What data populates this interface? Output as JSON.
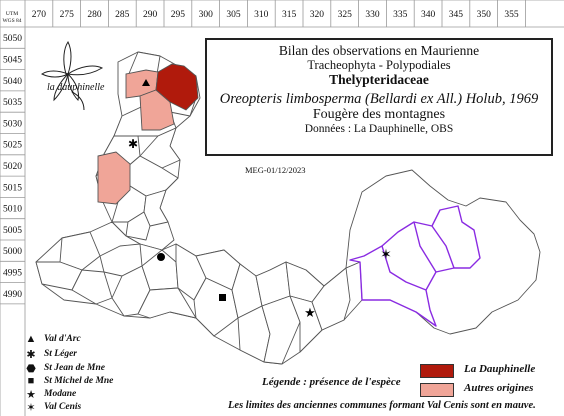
{
  "grid": {
    "utm_label_line1": "UTM",
    "utm_label_line2": "WGS 84",
    "x_ticks": [
      "270",
      "275",
      "280",
      "285",
      "290",
      "295",
      "300",
      "305",
      "310",
      "315",
      "320",
      "325",
      "330",
      "335",
      "340",
      "345",
      "350",
      "355"
    ],
    "y_ticks": [
      "5050",
      "5045",
      "5040",
      "5035",
      "5030",
      "5025",
      "5020",
      "5015",
      "5010",
      "5005",
      "5000",
      "4995",
      "4990"
    ]
  },
  "logo": {
    "text": "la dauphinelle",
    "icon": "flower-icon"
  },
  "title": {
    "line1": "Bilan des observations en Maurienne",
    "line2": "Tracheophyta - Polypodiales",
    "line3": "Thelypteridaceae",
    "line4": "Oreopteris limbosperma (Bellardi ex All.) Holub, 1969",
    "line5": "Fougère des montagnes",
    "line6": "Données : La Dauphinelle, OBS"
  },
  "date_stamp": "MEG-01/12/2023",
  "places": [
    {
      "symbol": "▲",
      "icon": "triangle-icon",
      "label": "Val d'Arc"
    },
    {
      "symbol": "✱",
      "icon": "asterisk-icon",
      "label": "St Léger"
    },
    {
      "symbol": "⬣",
      "icon": "hexagon-icon",
      "label": "St Jean de Mne"
    },
    {
      "symbol": "■",
      "icon": "square-icon",
      "label": "St Michel de Mne"
    },
    {
      "symbol": "★",
      "icon": "star-icon",
      "label": "Modane"
    },
    {
      "symbol": "✶",
      "icon": "six-point-star-icon",
      "label": "Val Cenis"
    }
  ],
  "legend": {
    "title": "Légende : présence de l'espèce",
    "items": [
      {
        "label": "La Dauphinelle",
        "color": "#b01a0c"
      },
      {
        "label": "Autres origines",
        "color": "#f0a598"
      }
    ]
  },
  "footnote": "Les limites des anciennes communes formant Val Cenis sont en mauve.",
  "colors": {
    "commune_border": "#555555",
    "val_cenis_border": "#8a2be2"
  }
}
